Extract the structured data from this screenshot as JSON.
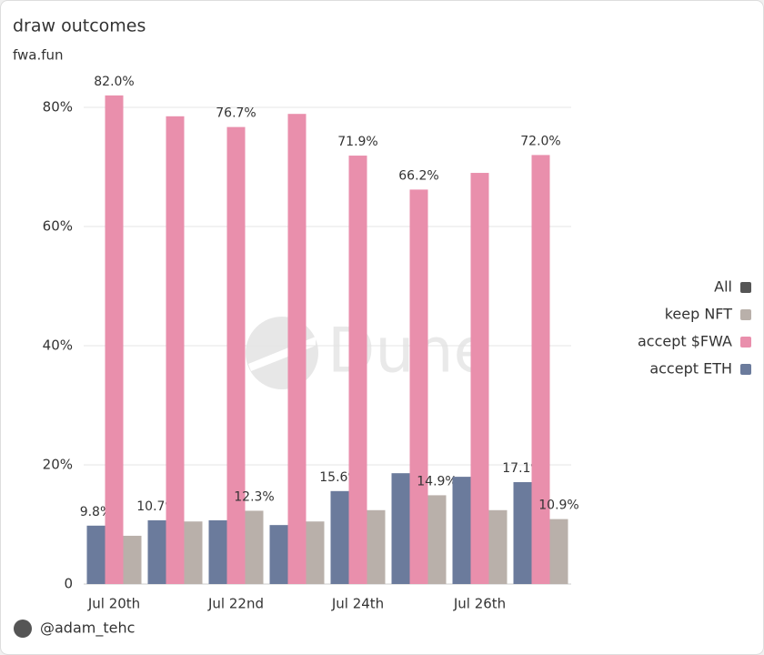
{
  "chart_data": {
    "type": "bar",
    "title": "draw outcomes",
    "subtitle": "fwa.fun",
    "watermark": "Dune",
    "author": "@adam_tehc",
    "categories": [
      "Jul 20th",
      null,
      "Jul 22nd",
      null,
      "Jul 24th",
      null,
      "Jul 26th",
      null
    ],
    "series": [
      {
        "name": "accept ETH",
        "color": "#6b7b9c",
        "values": [
          9.8,
          10.7,
          10.7,
          9.9,
          15.6,
          18.6,
          18.0,
          17.1
        ],
        "value_labels": [
          "9.8%",
          "10.7%",
          null,
          null,
          "15.6%",
          null,
          null,
          "17.1%"
        ]
      },
      {
        "name": "accept $FWA",
        "color": "#e98fac",
        "values": [
          82.0,
          78.5,
          76.7,
          78.9,
          71.9,
          66.2,
          69.0,
          72.0
        ],
        "value_labels": [
          "82.0%",
          null,
          "76.7%",
          null,
          "71.9%",
          "66.2%",
          null,
          "72.0%"
        ]
      },
      {
        "name": "keep NFT",
        "color": "#b9b0aa",
        "values": [
          8.1,
          10.5,
          12.3,
          10.5,
          12.4,
          14.9,
          12.4,
          10.9
        ],
        "value_labels": [
          null,
          null,
          "12.3%",
          null,
          null,
          "14.9%",
          null,
          "10.9%"
        ]
      },
      {
        "name": "All",
        "color": "#555555",
        "values": [
          null,
          null,
          null,
          null,
          null,
          null,
          null,
          null
        ]
      }
    ],
    "ylim": [
      0,
      80
    ],
    "yticks": [
      0,
      {
        "value": 20,
        "label": "20%"
      },
      {
        "value": 40,
        "label": "40%"
      },
      {
        "value": 60,
        "label": "60%"
      },
      {
        "value": 80,
        "label": "80%"
      }
    ],
    "grid": true
  }
}
